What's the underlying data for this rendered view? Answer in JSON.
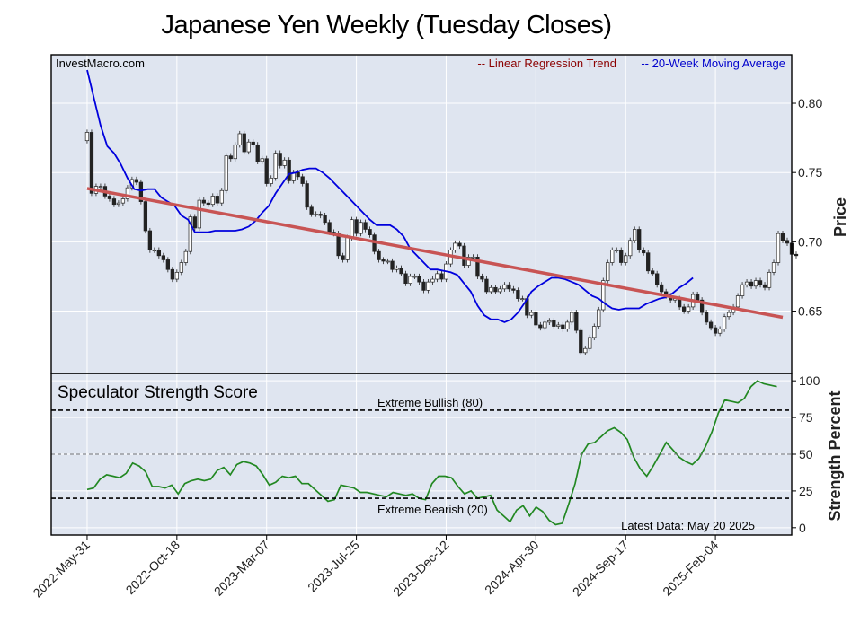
{
  "title": "Japanese Yen Weekly (Tuesday Closes)",
  "watermark": "InvestMacro.com",
  "colors": {
    "panel_bg": "#dfe5f0",
    "grid": "#ffffff",
    "regression": "#c85454",
    "ma": "#0000dd",
    "score": "#228822",
    "candle_up": "#ffffff",
    "candle_down": "#222222"
  },
  "chart_data": [
    {
      "type": "candlestick",
      "title": "Japanese Yen Weekly (Tuesday Closes)",
      "ylabel": "Price",
      "ylim": [
        0.605,
        0.835
      ],
      "yticks": [
        0.65,
        0.7,
        0.75,
        0.8
      ],
      "ytick_labels": [
        "0.65",
        "0.70",
        "0.75",
        "0.80"
      ],
      "xlim": [
        -8,
        157
      ],
      "xtick_positions": [
        0,
        20,
        40,
        60,
        80,
        100,
        120,
        140
      ],
      "xtick_labels": [
        "2022-May-31",
        "2022-Oct-18",
        "2023-Mar-07",
        "2023-Jul-25",
        "2023-Dec-12",
        "2024-Apr-30",
        "2024-Sep-17",
        "2025-Feb-04"
      ],
      "legend": {
        "regression_label": "-- Linear Regression Trend",
        "ma_label": "-- 20-Week Moving Average",
        "placement": "top-right"
      },
      "regression": {
        "start": [
          0,
          0.7385
        ],
        "end": [
          155,
          0.6455
        ]
      },
      "closes": [
        0.779,
        0.735,
        0.74,
        0.74,
        0.733,
        0.731,
        0.727,
        0.728,
        0.731,
        0.739,
        0.745,
        0.743,
        0.729,
        0.708,
        0.694,
        0.694,
        0.69,
        0.687,
        0.68,
        0.673,
        0.678,
        0.685,
        0.693,
        0.718,
        0.71,
        0.73,
        0.728,
        0.727,
        0.733,
        0.728,
        0.737,
        0.762,
        0.76,
        0.77,
        0.778,
        0.765,
        0.772,
        0.77,
        0.758,
        0.76,
        0.742,
        0.746,
        0.764,
        0.755,
        0.759,
        0.744,
        0.75,
        0.747,
        0.742,
        0.725,
        0.72,
        0.72,
        0.719,
        0.714,
        0.707,
        0.706,
        0.69,
        0.687,
        0.703,
        0.716,
        0.706,
        0.714,
        0.709,
        0.705,
        0.693,
        0.687,
        0.686,
        0.686,
        0.68,
        0.681,
        0.677,
        0.67,
        0.675,
        0.675,
        0.671,
        0.665,
        0.671,
        0.673,
        0.677,
        0.673,
        0.684,
        0.694,
        0.699,
        0.697,
        0.683,
        0.689,
        0.689,
        0.675,
        0.673,
        0.664,
        0.667,
        0.664,
        0.666,
        0.669,
        0.666,
        0.665,
        0.659,
        0.659,
        0.647,
        0.649,
        0.64,
        0.638,
        0.642,
        0.643,
        0.639,
        0.64,
        0.637,
        0.642,
        0.649,
        0.636,
        0.62,
        0.623,
        0.631,
        0.639,
        0.651,
        0.672,
        0.685,
        0.694,
        0.694,
        0.685,
        0.69,
        0.701,
        0.709,
        0.694,
        0.692,
        0.679,
        0.677,
        0.669,
        0.664,
        0.661,
        0.658,
        0.659,
        0.653,
        0.65,
        0.653,
        0.662,
        0.658,
        0.649,
        0.642,
        0.638,
        0.634,
        0.637,
        0.646,
        0.649,
        0.653,
        0.661,
        0.669,
        0.671,
        0.668,
        0.672,
        0.669,
        0.667,
        0.678,
        0.685,
        0.706,
        0.701,
        0.699,
        0.691,
        0.69
      ],
      "ma20": [
        0.824,
        0.804,
        0.784,
        0.769,
        0.764,
        0.756,
        0.746,
        0.738,
        0.737,
        0.738,
        0.738,
        0.732,
        0.729,
        0.726,
        0.719,
        0.716,
        0.707,
        0.707,
        0.707,
        0.708,
        0.708,
        0.708,
        0.708,
        0.709,
        0.711,
        0.715,
        0.721,
        0.726,
        0.735,
        0.742,
        0.749,
        0.75,
        0.752,
        0.753,
        0.753,
        0.75,
        0.746,
        0.741,
        0.736,
        0.731,
        0.726,
        0.721,
        0.716,
        0.712,
        0.712,
        0.712,
        0.709,
        0.704,
        0.695,
        0.69,
        0.685,
        0.68,
        0.68,
        0.679,
        0.678,
        0.676,
        0.67,
        0.664,
        0.654,
        0.647,
        0.644,
        0.644,
        0.642,
        0.644,
        0.649,
        0.656,
        0.664,
        0.668,
        0.671,
        0.674,
        0.674,
        0.673,
        0.671,
        0.669,
        0.665,
        0.661,
        0.659,
        0.655,
        0.652,
        0.651,
        0.652,
        0.652,
        0.652,
        0.655,
        0.657,
        0.659,
        0.66,
        0.663,
        0.667,
        0.67,
        0.674
      ],
      "ma20_x": [
        0,
        1.5,
        3,
        4.5,
        6,
        7.5,
        9,
        10.5,
        12,
        13.5,
        15,
        16.5,
        18,
        19.5,
        21,
        22.5,
        24,
        25.5,
        27,
        28.5,
        30,
        31.5,
        33,
        34.5,
        36,
        37.5,
        39,
        40.5,
        42,
        43.5,
        45,
        46.5,
        48,
        49.5,
        51,
        52.5,
        54,
        55.5,
        57,
        58.5,
        60,
        61.5,
        63,
        64.5,
        66,
        67.5,
        69,
        70.5,
        72,
        73.5,
        75,
        76.5,
        78,
        79.5,
        81,
        82.5,
        84,
        85.5,
        87,
        88.5,
        90,
        91.5,
        93,
        94.5,
        96,
        97.5,
        99,
        100.5,
        102,
        103.5,
        105,
        106.5,
        108,
        109.5,
        111,
        112.5,
        114,
        115.5,
        117,
        118.5,
        120,
        121.5,
        123,
        124.5,
        126,
        127.5,
        129,
        130.5,
        132,
        133.5,
        135
      ]
    },
    {
      "type": "line",
      "title": "Speculator Strength Score",
      "ylabel": "Strength Percent",
      "ylim": [
        -5,
        105
      ],
      "yticks": [
        0,
        25,
        50,
        75,
        100
      ],
      "ytick_labels": [
        "0",
        "25",
        "50",
        "75",
        "100"
      ],
      "reference_lines": [
        {
          "value": 80,
          "label": "Extreme Bullish (80)"
        },
        {
          "value": 50,
          "label": ""
        },
        {
          "value": 20,
          "label": "Extreme Bearish (20)"
        }
      ],
      "annotation": "Latest Data: May 20 2025",
      "values": [
        26,
        27,
        33,
        36,
        35,
        34,
        37,
        44,
        42,
        38,
        28,
        28,
        27,
        29,
        23,
        30,
        32,
        33,
        32,
        33,
        39,
        41,
        36,
        43,
        45,
        44,
        42,
        36,
        29,
        31,
        35,
        34,
        35,
        30,
        30,
        26,
        22,
        18,
        19,
        29,
        28,
        27,
        24,
        24,
        23,
        22,
        21,
        24,
        23,
        22,
        23,
        20,
        19,
        30,
        35,
        35,
        34,
        28,
        23,
        25,
        20,
        21,
        22,
        12,
        8,
        4,
        12,
        15,
        8,
        14,
        11,
        5,
        2,
        3,
        16,
        30,
        50,
        57,
        58,
        62,
        66,
        68,
        65,
        60,
        48,
        40,
        35,
        42,
        50,
        58,
        53,
        48,
        45,
        43,
        47,
        55,
        65,
        78,
        87,
        86,
        85,
        88,
        96,
        100,
        98,
        97,
        96
      ],
      "x_start": 0,
      "x_step": 1.45
    }
  ]
}
